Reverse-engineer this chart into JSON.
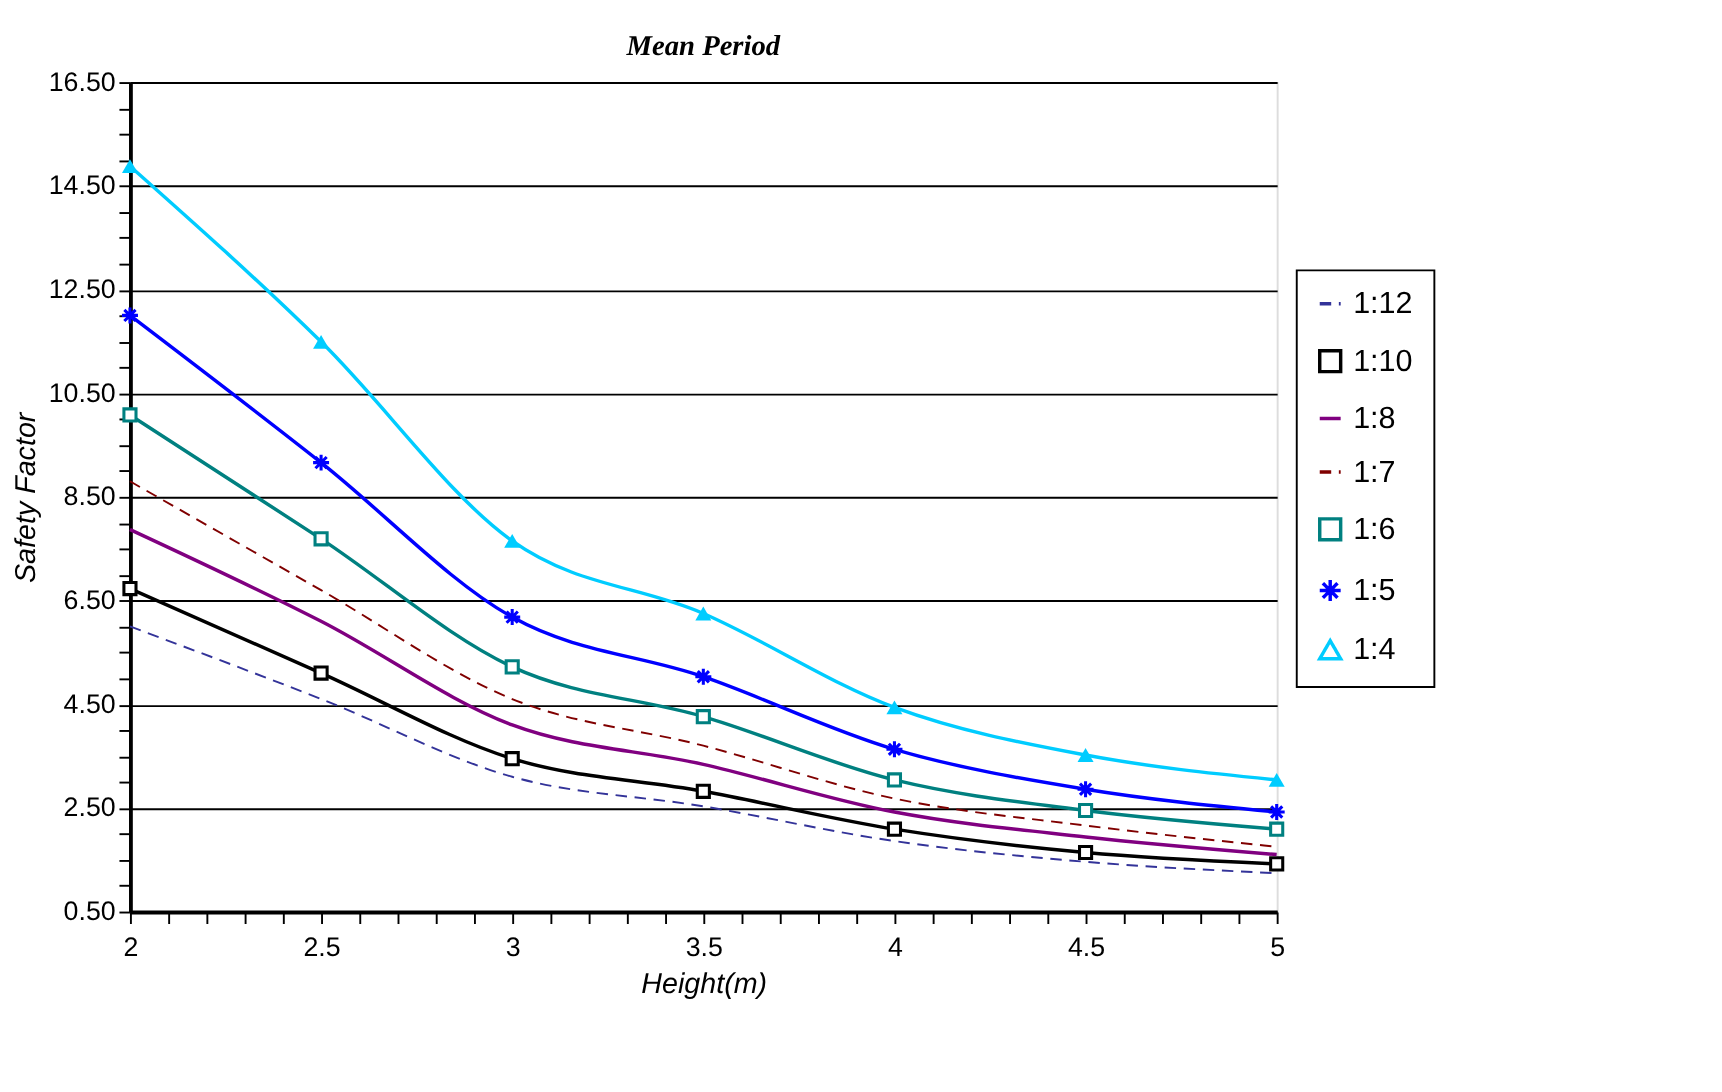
{
  "chart_data": {
    "type": "line",
    "title": "Mean Period",
    "xlabel": "Height(m)",
    "ylabel": "Safety Factor",
    "x": [
      2,
      2.5,
      3,
      3.5,
      4,
      4.5,
      5
    ],
    "xlim": [
      2,
      5
    ],
    "ylim": [
      0.5,
      16.5
    ],
    "xticks": [
      2,
      {
        "value": 2.1,
        "label": null
      },
      {
        "value": 2.2,
        "label": null
      },
      {
        "value": 2.3,
        "label": null
      },
      {
        "value": 2.4,
        "label": null
      },
      2.5,
      {
        "value": 2.6,
        "label": null
      },
      {
        "value": 2.7,
        "label": null
      },
      {
        "value": 2.8,
        "label": null
      },
      {
        "value": 2.9,
        "label": null
      },
      3,
      {
        "value": 3.1,
        "label": null
      },
      {
        "value": 3.2,
        "label": null
      },
      {
        "value": 3.3,
        "label": null
      },
      {
        "value": 3.4,
        "label": null
      },
      3.5,
      {
        "value": 3.6,
        "label": null
      },
      {
        "value": 3.7,
        "label": null
      },
      {
        "value": 3.8,
        "label": null
      },
      {
        "value": 3.9,
        "label": null
      },
      4,
      {
        "value": 4.1,
        "label": null
      },
      {
        "value": 4.2,
        "label": null
      },
      {
        "value": 4.3,
        "label": null
      },
      {
        "value": 4.4,
        "label": null
      },
      4.5,
      {
        "value": 4.6,
        "label": null
      },
      {
        "value": 4.7,
        "label": null
      },
      {
        "value": 4.8,
        "label": null
      },
      {
        "value": 4.9,
        "label": null
      },
      5
    ],
    "yticks": [
      {
        "value": 0.5,
        "label": "0.50"
      },
      {
        "value": 1.0,
        "label": null
      },
      {
        "value": 1.5,
        "label": null
      },
      {
        "value": 2.0,
        "label": null
      },
      {
        "value": 2.5,
        "label": "2.50"
      },
      {
        "value": 3.0,
        "label": null
      },
      {
        "value": 3.5,
        "label": null
      },
      {
        "value": 4.0,
        "label": null
      },
      {
        "value": 4.5,
        "label": "4.50"
      },
      {
        "value": 5.0,
        "label": null
      },
      {
        "value": 5.5,
        "label": null
      },
      {
        "value": 6.0,
        "label": null
      },
      {
        "value": 6.5,
        "label": "6.50"
      },
      {
        "value": 7.0,
        "label": null
      },
      {
        "value": 7.5,
        "label": null
      },
      {
        "value": 8.0,
        "label": null
      },
      {
        "value": 8.5,
        "label": "8.50"
      },
      {
        "value": 9.0,
        "label": null
      },
      {
        "value": 9.5,
        "label": null
      },
      {
        "value": 10.0,
        "label": null
      },
      {
        "value": 10.5,
        "label": "10.50"
      },
      {
        "value": 11.0,
        "label": null
      },
      {
        "value": 11.5,
        "label": null
      },
      {
        "value": 12.0,
        "label": null
      },
      {
        "value": 12.5,
        "label": "12.50"
      },
      {
        "value": 13.0,
        "label": null
      },
      {
        "value": 13.5,
        "label": null
      },
      {
        "value": 14.0,
        "label": null
      },
      {
        "value": 14.5,
        "label": "14.50"
      },
      {
        "value": 15.0,
        "label": null
      },
      {
        "value": 15.5,
        "label": null
      },
      {
        "value": 16.0,
        "label": null
      },
      {
        "value": 16.5,
        "label": "16.50"
      }
    ],
    "grid": "y",
    "legend": "right",
    "series": [
      {
        "name": "1:12",
        "color": "#333399",
        "line_style": "dashed",
        "marker": "none",
        "values": [
          6.0,
          4.6,
          3.1,
          2.53,
          1.86,
          1.46,
          1.24
        ]
      },
      {
        "name": "1:10",
        "color": "#000000",
        "line_style": "solid",
        "marker": "square",
        "values": [
          6.73,
          5.1,
          3.45,
          2.82,
          2.09,
          1.64,
          1.42
        ]
      },
      {
        "name": "1:8",
        "color": "#800080",
        "line_style": "solid",
        "marker": "none",
        "values": [
          7.87,
          6.1,
          4.1,
          3.34,
          2.42,
          1.94,
          1.6
        ]
      },
      {
        "name": "1:7",
        "color": "#800000",
        "line_style": "dashed",
        "marker": "none",
        "values": [
          8.8,
          6.7,
          4.6,
          3.7,
          2.68,
          2.16,
          1.75
        ]
      },
      {
        "name": "1:6",
        "color": "#008080",
        "line_style": "solid",
        "marker": "square",
        "values": [
          10.08,
          7.69,
          5.22,
          4.26,
          3.04,
          2.45,
          2.09
        ]
      },
      {
        "name": "1:5",
        "color": "#0000ff",
        "line_style": "solid",
        "marker": "cross",
        "values": [
          12.0,
          9.16,
          6.18,
          5.03,
          3.63,
          2.86,
          2.42
        ]
      },
      {
        "name": "1:4",
        "color": "#00ccff",
        "line_style": "solid",
        "marker": "triangle",
        "values": [
          14.88,
          11.49,
          7.65,
          6.25,
          4.44,
          3.52,
          3.04
        ]
      }
    ]
  }
}
